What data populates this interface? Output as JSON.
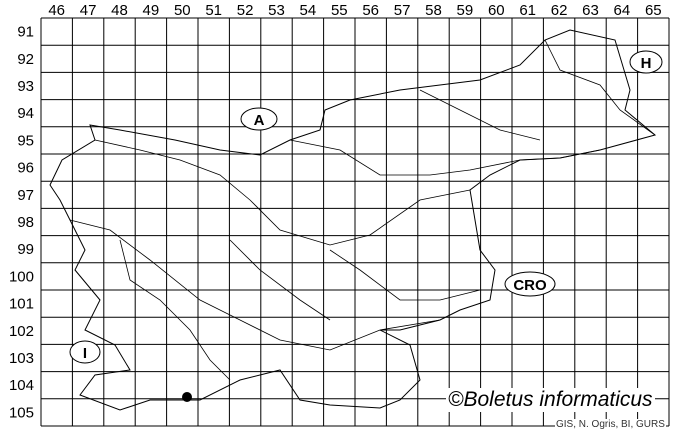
{
  "map": {
    "columns": [
      "46",
      "47",
      "48",
      "49",
      "50",
      "51",
      "52",
      "53",
      "54",
      "55",
      "56",
      "57",
      "58",
      "59",
      "60",
      "61",
      "62",
      "63",
      "64",
      "65"
    ],
    "rows": [
      "91",
      "92",
      "93",
      "94",
      "95",
      "96",
      "97",
      "98",
      "99",
      "100",
      "101",
      "102",
      "103",
      "104",
      "105"
    ],
    "country_labels": {
      "austria": "A",
      "hungary": "H",
      "croatia": "CRO",
      "italy": "I"
    },
    "record_marker": {
      "column": "50",
      "row": "104"
    },
    "credit": "©Boletus informaticus",
    "source": "GIS, N. Ogris, BI, GURS",
    "colors": {
      "grid": "#000000",
      "border": "#000000",
      "marker": "#000000"
    }
  }
}
